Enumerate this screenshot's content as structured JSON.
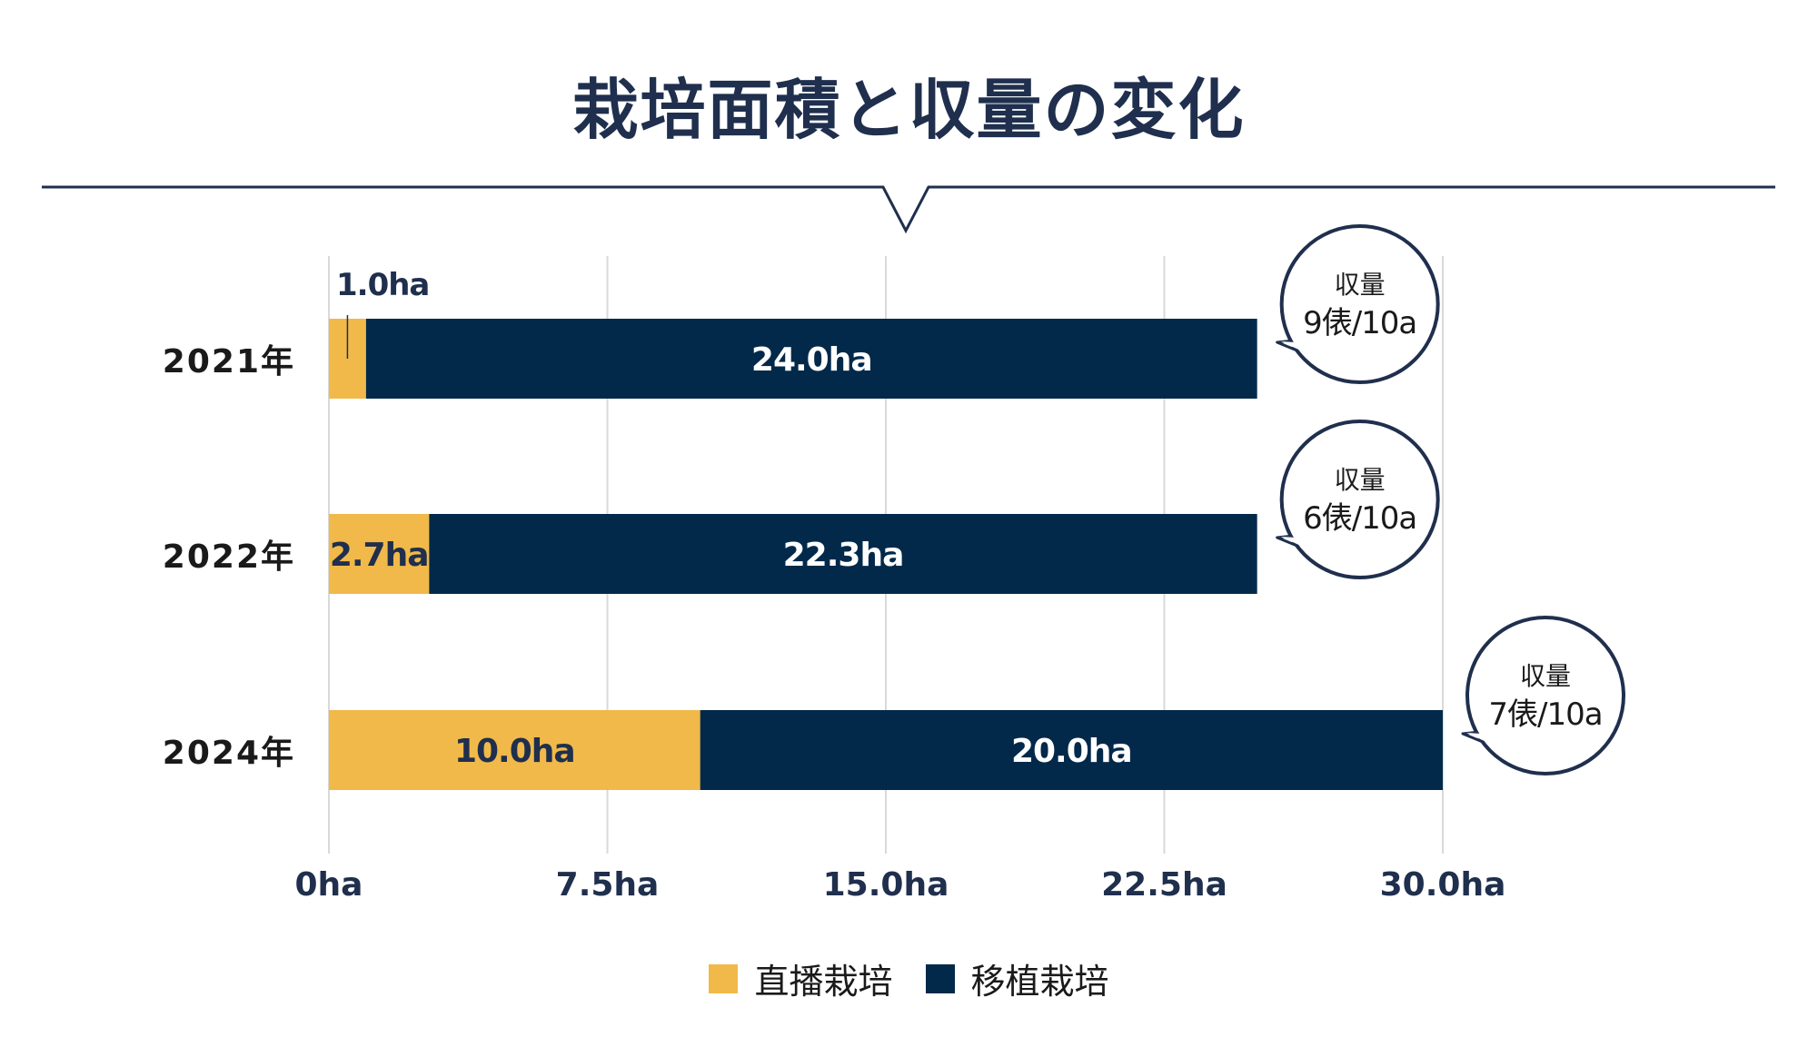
{
  "colors": {
    "direct": "#f0b94a",
    "transplant": "#02294a",
    "navy": "#1f2f4d",
    "grid": "#d9d9d9"
  },
  "chart_data": {
    "type": "bar",
    "orientation": "horizontal",
    "stacked": true,
    "title": "栽培面積と収量の変化",
    "categories": [
      "2021年",
      "2022年",
      "2024年"
    ],
    "series": [
      {
        "name": "直播栽培",
        "values": [
          1.0,
          2.7,
          10.0
        ],
        "labels": [
          "1.0ha",
          "2.7ha",
          "10.0ha"
        ]
      },
      {
        "name": "移植栽培",
        "values": [
          24.0,
          22.3,
          20.0
        ],
        "labels": [
          "24.0ha",
          "22.3ha",
          "20.0ha"
        ]
      }
    ],
    "xlim": [
      0,
      30
    ],
    "x_ticks": [
      0,
      7.5,
      15,
      22.5,
      30
    ],
    "x_tick_labels": [
      "0ha",
      "7.5ha",
      "15.0ha",
      "22.5ha",
      "30.0ha"
    ],
    "grid": true,
    "legend_position": "bottom-center",
    "annotations": [
      {
        "category": "2021年",
        "line1": "収量",
        "line2": "9俵/10a"
      },
      {
        "category": "2022年",
        "line1": "収量",
        "line2": "6俵/10a"
      },
      {
        "category": "2024年",
        "line1": "収量",
        "line2": "7俵/10a"
      }
    ]
  }
}
